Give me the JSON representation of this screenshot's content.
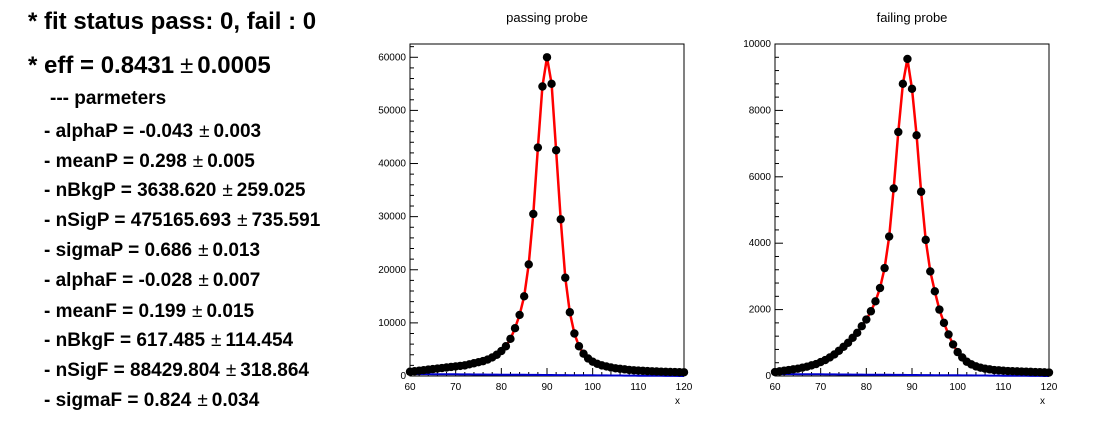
{
  "summary": {
    "fit_status": "* fit status pass: 0, fail : 0",
    "eff_prefix": "* eff = 0.8431",
    "eff_err": "0.0005",
    "pm": "±",
    "params_header": "--- parmeters",
    "params": [
      {
        "label": "- alphaP = -0.043",
        "err": "0.003"
      },
      {
        "label": "- meanP = 0.298",
        "err": "0.005"
      },
      {
        "label": "- nBkgP = 3638.620",
        "err": "259.025"
      },
      {
        "label": "- nSigP = 475165.693",
        "err": "735.591"
      },
      {
        "label": "- sigmaP = 0.686",
        "err": "0.013"
      },
      {
        "label": "- alphaF = -0.028",
        "err": "0.007"
      },
      {
        "label": "- meanF = 0.199",
        "err": "0.015"
      },
      {
        "label": "- nBkgF = 617.485",
        "err": "114.454"
      },
      {
        "label": "- nSigF = 88429.804",
        "err": "318.864"
      },
      {
        "label": "- sigmaF = 0.824",
        "err": "0.034"
      }
    ]
  },
  "chart_data": [
    {
      "type": "scatter",
      "title": "passing probe",
      "xlabel": "x",
      "ylabel": "",
      "xlim": [
        60,
        120
      ],
      "ylim": [
        0,
        62500
      ],
      "xticks": [
        60,
        70,
        80,
        90,
        100,
        110,
        120
      ],
      "yticks": [
        0,
        10000,
        20000,
        30000,
        40000,
        50000,
        60000
      ],
      "colors": {
        "points": "#000000",
        "fit": "#ff0000",
        "background": "#0000cc"
      },
      "series": [
        {
          "x": [
            60,
            61,
            62,
            63,
            64,
            65,
            66,
            67,
            68,
            69,
            70,
            71,
            72,
            73,
            74,
            75,
            76,
            77,
            78,
            79,
            80,
            81,
            82,
            83,
            84,
            85,
            86,
            87,
            88,
            89,
            90,
            91,
            92,
            93,
            94,
            95,
            96,
            97,
            98,
            99,
            100,
            101,
            102,
            103,
            104,
            105,
            106,
            107,
            108,
            109,
            110,
            111,
            112,
            113,
            114,
            115,
            116,
            117,
            118,
            119,
            120
          ],
          "y": [
            800,
            900,
            1000,
            1100,
            1200,
            1300,
            1400,
            1500,
            1600,
            1700,
            1800,
            1900,
            2000,
            2200,
            2400,
            2600,
            2800,
            3100,
            3500,
            4000,
            4700,
            5600,
            7000,
            9000,
            11500,
            15000,
            21000,
            30500,
            43000,
            54500,
            60000,
            55000,
            42500,
            29500,
            18500,
            12000,
            8000,
            5600,
            4200,
            3300,
            2700,
            2300,
            2000,
            1800,
            1600,
            1450,
            1350,
            1250,
            1150,
            1080,
            1020,
            970,
            920,
            880,
            850,
            820,
            790,
            760,
            740,
            720,
            700
          ]
        }
      ]
    },
    {
      "type": "scatter",
      "title": "failing probe",
      "xlabel": "x",
      "ylabel": "",
      "xlim": [
        60,
        120
      ],
      "ylim": [
        0,
        10000
      ],
      "xticks": [
        60,
        70,
        80,
        90,
        100,
        110,
        120
      ],
      "yticks": [
        0,
        2000,
        4000,
        6000,
        8000,
        10000
      ],
      "colors": {
        "points": "#000000",
        "fit": "#ff0000",
        "background": "#0000cc"
      },
      "series": [
        {
          "x": [
            60,
            61,
            62,
            63,
            64,
            65,
            66,
            67,
            68,
            69,
            70,
            71,
            72,
            73,
            74,
            75,
            76,
            77,
            78,
            79,
            80,
            81,
            82,
            83,
            84,
            85,
            86,
            87,
            88,
            89,
            90,
            91,
            92,
            93,
            94,
            95,
            96,
            97,
            98,
            99,
            100,
            101,
            102,
            103,
            104,
            105,
            106,
            107,
            108,
            109,
            110,
            111,
            112,
            113,
            114,
            115,
            116,
            117,
            118,
            119,
            120
          ],
          "y": [
            120,
            140,
            160,
            180,
            200,
            220,
            250,
            280,
            320,
            360,
            420,
            480,
            560,
            650,
            760,
            880,
            1000,
            1150,
            1300,
            1500,
            1700,
            1950,
            2250,
            2650,
            3250,
            4200,
            5650,
            7350,
            8800,
            9550,
            8650,
            7250,
            5550,
            4100,
            3150,
            2550,
            2000,
            1600,
            1250,
            950,
            720,
            560,
            430,
            350,
            290,
            250,
            220,
            200,
            180,
            170,
            160,
            150,
            145,
            140,
            135,
            130,
            125,
            120,
            115,
            110,
            105
          ]
        }
      ]
    }
  ]
}
